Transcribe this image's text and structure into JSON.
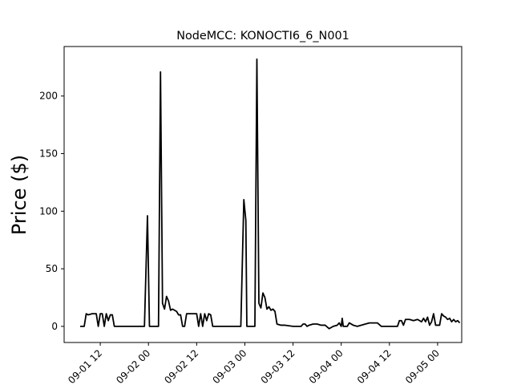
{
  "chart_data": {
    "type": "line",
    "title": "NodeMCC: KONOCTI6_6_N001",
    "xlabel": "",
    "ylabel": "Price ($)",
    "x_axis": {
      "type": "datetime",
      "range": [
        "2016-09-01 03:00",
        "2016-09-05 06:00"
      ]
    },
    "ylim": [
      -14,
      243
    ],
    "yticks": [
      0,
      50,
      100,
      150,
      200
    ],
    "xticks": [
      {
        "t": "2016-09-01 12:00",
        "label": "09-01 12"
      },
      {
        "t": "2016-09-02 00:00",
        "label": "09-02 00"
      },
      {
        "t": "2016-09-02 12:00",
        "label": "09-02 12"
      },
      {
        "t": "2016-09-03 00:00",
        "label": "09-03 00"
      },
      {
        "t": "2016-09-03 12:00",
        "label": "09-03 12"
      },
      {
        "t": "2016-09-04 00:00",
        "label": "09-04 00"
      },
      {
        "t": "2016-09-04 12:00",
        "label": "09-04 12"
      },
      {
        "t": "2016-09-05 00:00",
        "label": "09-05 00"
      }
    ],
    "grid": false,
    "line_color": "#000000",
    "series": [
      {
        "points": [
          [
            "2016-09-01 07:00",
            0
          ],
          [
            "2016-09-01 08:00",
            0
          ],
          [
            "2016-09-01 08:30",
            11
          ],
          [
            "2016-09-01 09:00",
            10
          ],
          [
            "2016-09-01 10:00",
            11
          ],
          [
            "2016-09-01 11:00",
            11
          ],
          [
            "2016-09-01 11:30",
            0
          ],
          [
            "2016-09-01 12:00",
            11
          ],
          [
            "2016-09-01 12:30",
            11
          ],
          [
            "2016-09-01 13:00",
            0
          ],
          [
            "2016-09-01 13:30",
            11
          ],
          [
            "2016-09-01 14:00",
            5
          ],
          [
            "2016-09-01 14:30",
            10
          ],
          [
            "2016-09-01 15:00",
            10
          ],
          [
            "2016-09-01 15:30",
            0
          ],
          [
            "2016-09-01 20:00",
            0
          ],
          [
            "2016-09-01 23:00",
            0
          ],
          [
            "2016-09-01 23:45",
            96
          ],
          [
            "2016-09-02 00:15",
            0
          ],
          [
            "2016-09-02 02:30",
            0
          ],
          [
            "2016-09-02 03:00",
            221
          ],
          [
            "2016-09-02 03:30",
            20
          ],
          [
            "2016-09-02 04:00",
            15
          ],
          [
            "2016-09-02 04:30",
            26
          ],
          [
            "2016-09-02 05:00",
            22
          ],
          [
            "2016-09-02 05:30",
            14
          ],
          [
            "2016-09-02 06:00",
            15
          ],
          [
            "2016-09-02 07:00",
            13
          ],
          [
            "2016-09-02 07:30",
            10
          ],
          [
            "2016-09-02 08:00",
            10
          ],
          [
            "2016-09-02 08:30",
            0
          ],
          [
            "2016-09-02 09:00",
            0
          ],
          [
            "2016-09-02 09:30",
            11
          ],
          [
            "2016-09-02 11:00",
            11
          ],
          [
            "2016-09-02 12:00",
            11
          ],
          [
            "2016-09-02 12:30",
            0
          ],
          [
            "2016-09-02 13:00",
            11
          ],
          [
            "2016-09-02 13:30",
            0
          ],
          [
            "2016-09-02 14:00",
            11
          ],
          [
            "2016-09-02 14:30",
            5
          ],
          [
            "2016-09-02 15:00",
            11
          ],
          [
            "2016-09-02 15:30",
            10
          ],
          [
            "2016-09-02 16:00",
            0
          ],
          [
            "2016-09-02 20:00",
            0
          ],
          [
            "2016-09-02 23:00",
            0
          ],
          [
            "2016-09-02 23:45",
            110
          ],
          [
            "2016-09-03 00:15",
            92
          ],
          [
            "2016-09-03 00:30",
            0
          ],
          [
            "2016-09-03 02:30",
            0
          ],
          [
            "2016-09-03 03:00",
            232
          ],
          [
            "2016-09-03 03:30",
            20
          ],
          [
            "2016-09-03 04:00",
            16
          ],
          [
            "2016-09-03 04:30",
            29
          ],
          [
            "2016-09-03 05:00",
            25
          ],
          [
            "2016-09-03 05:30",
            15
          ],
          [
            "2016-09-03 06:00",
            17
          ],
          [
            "2016-09-03 06:30",
            14
          ],
          [
            "2016-09-03 07:00",
            15
          ],
          [
            "2016-09-03 07:30",
            13
          ],
          [
            "2016-09-03 08:00",
            2
          ],
          [
            "2016-09-03 09:00",
            1
          ],
          [
            "2016-09-03 10:00",
            1
          ],
          [
            "2016-09-03 12:00",
            0
          ],
          [
            "2016-09-03 14:00",
            0
          ],
          [
            "2016-09-03 14:30",
            2
          ],
          [
            "2016-09-03 15:00",
            2
          ],
          [
            "2016-09-03 15:30",
            0
          ],
          [
            "2016-09-03 16:00",
            1
          ],
          [
            "2016-09-03 17:00",
            2
          ],
          [
            "2016-09-03 18:00",
            2
          ],
          [
            "2016-09-03 19:00",
            1
          ],
          [
            "2016-09-03 20:00",
            1
          ],
          [
            "2016-09-03 21:00",
            -2
          ],
          [
            "2016-09-03 22:00",
            0
          ],
          [
            "2016-09-03 23:00",
            1
          ],
          [
            "2016-09-03 23:30",
            3
          ],
          [
            "2016-09-04 00:00",
            0
          ],
          [
            "2016-09-04 00:15",
            7
          ],
          [
            "2016-09-04 00:30",
            0
          ],
          [
            "2016-09-04 01:30",
            0
          ],
          [
            "2016-09-04 02:00",
            3
          ],
          [
            "2016-09-04 03:00",
            1
          ],
          [
            "2016-09-04 04:00",
            0
          ],
          [
            "2016-09-04 06:00",
            2
          ],
          [
            "2016-09-04 07:00",
            3
          ],
          [
            "2016-09-04 09:00",
            3
          ],
          [
            "2016-09-04 10:00",
            0
          ],
          [
            "2016-09-04 12:00",
            0
          ],
          [
            "2016-09-04 14:00",
            0
          ],
          [
            "2016-09-04 14:30",
            5
          ],
          [
            "2016-09-04 15:00",
            5
          ],
          [
            "2016-09-04 15:30",
            1
          ],
          [
            "2016-09-04 16:00",
            6
          ],
          [
            "2016-09-04 17:00",
            6
          ],
          [
            "2016-09-04 18:00",
            5
          ],
          [
            "2016-09-04 19:00",
            6
          ],
          [
            "2016-09-04 20:00",
            4
          ],
          [
            "2016-09-04 20:30",
            7
          ],
          [
            "2016-09-04 21:00",
            4
          ],
          [
            "2016-09-04 21:30",
            8
          ],
          [
            "2016-09-04 22:00",
            1
          ],
          [
            "2016-09-04 22:30",
            4
          ],
          [
            "2016-09-04 23:00",
            11
          ],
          [
            "2016-09-04 23:30",
            1
          ],
          [
            "2016-09-05 00:00",
            1
          ],
          [
            "2016-09-05 00:30",
            1
          ],
          [
            "2016-09-05 01:00",
            11
          ],
          [
            "2016-09-05 01:30",
            9
          ],
          [
            "2016-09-05 02:00",
            8
          ],
          [
            "2016-09-05 02:30",
            6
          ],
          [
            "2016-09-05 03:00",
            7
          ],
          [
            "2016-09-05 03:30",
            4
          ],
          [
            "2016-09-05 04:00",
            6
          ],
          [
            "2016-09-05 04:30",
            4
          ],
          [
            "2016-09-05 05:00",
            5
          ],
          [
            "2016-09-05 05:30",
            3
          ]
        ]
      }
    ]
  }
}
